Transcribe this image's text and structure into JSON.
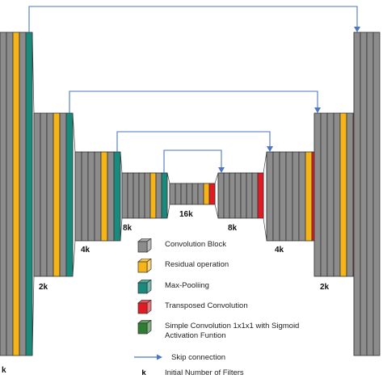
{
  "colors": {
    "conv": "#8c8c8c",
    "residual": "#f5b417",
    "maxpool": "#1a8a7c",
    "transposed": "#e01b24",
    "sigmoid": "#2f7d32",
    "arrow": "#4a76c4",
    "outline": "#333333"
  },
  "level_labels": {
    "enc_1": "k",
    "enc_2": "2k",
    "enc_3": "4k",
    "enc_4": "8k",
    "bottleneck": "16k",
    "dec_4": "8k",
    "dec_3": "4k",
    "dec_2": "2k"
  },
  "legend": {
    "conv": {
      "label": "Convolution Block",
      "icon": "gray-cube-icon"
    },
    "residual": {
      "label": "Residual operation",
      "icon": "yellow-cube-icon"
    },
    "maxpool": {
      "label": "Max-Pooliing",
      "icon": "teal-cube-icon"
    },
    "transposed": {
      "label": "Transposed Convolution",
      "icon": "red-cube-icon"
    },
    "sigmoid": {
      "label": "Simple Convolution 1x1x1 with Sigmoid\nActivation Funtion",
      "icon": "green-cube-icon"
    },
    "skip": {
      "label": "Skip connection",
      "icon": "arrow-icon"
    },
    "k": {
      "symbol": "k",
      "label": "Initial Number of Filters"
    }
  }
}
